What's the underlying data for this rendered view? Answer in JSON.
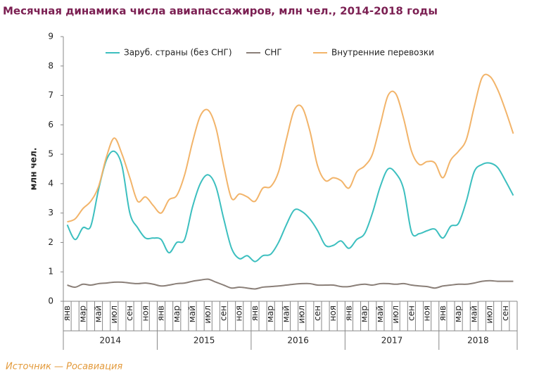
{
  "chart_data": {
    "type": "line",
    "title": "Месячная динамика числа авиапассажиров, млн чел., 2014-2018 годы",
    "y_label": "млн чел.",
    "source": "Источник — Росавиация",
    "years": [
      "2014",
      "2015",
      "2016",
      "2017",
      "2018"
    ],
    "categories": [
      "янв",
      null,
      "мар",
      null,
      "май",
      null,
      "июл",
      null,
      "сен",
      null,
      "ноя",
      null,
      "янв",
      null,
      "мар",
      null,
      "май",
      null,
      "июл",
      null,
      "сен",
      null,
      "ноя",
      null,
      "янв",
      null,
      "мар",
      null,
      "май",
      null,
      "июл",
      null,
      "сен",
      null,
      "ноя",
      null,
      "янв",
      null,
      "мар",
      null,
      "май",
      null,
      "июл",
      null,
      "сен",
      null,
      "ноя",
      null,
      "янв",
      null,
      "мар",
      null,
      "май",
      null,
      "июл",
      null,
      "сен",
      null
    ],
    "series": [
      {
        "name": "Заруб. страны (без СНГ)",
        "color": "#3cbfbf",
        "values": [
          2.6,
          2.1,
          2.5,
          2.55,
          3.8,
          4.8,
          5.1,
          4.6,
          3.0,
          2.5,
          2.15,
          2.15,
          2.1,
          1.65,
          2.0,
          2.1,
          3.2,
          4.0,
          4.3,
          3.9,
          2.8,
          1.8,
          1.45,
          1.55,
          1.35,
          1.55,
          1.6,
          2.0,
          2.6,
          3.1,
          3.05,
          2.8,
          2.4,
          1.9,
          1.9,
          2.05,
          1.8,
          2.1,
          2.3,
          3.0,
          3.9,
          4.5,
          4.35,
          3.8,
          2.35,
          2.3,
          2.4,
          2.45,
          2.15,
          2.55,
          2.65,
          3.4,
          4.4,
          4.65,
          4.7,
          4.55,
          4.1,
          3.6
        ]
      },
      {
        "name": "СНГ",
        "color": "#8a7f78",
        "values": [
          0.55,
          0.48,
          0.58,
          0.55,
          0.6,
          0.62,
          0.65,
          0.65,
          0.62,
          0.6,
          0.62,
          0.58,
          0.52,
          0.55,
          0.6,
          0.62,
          0.68,
          0.72,
          0.75,
          0.65,
          0.55,
          0.45,
          0.48,
          0.45,
          0.42,
          0.48,
          0.5,
          0.52,
          0.55,
          0.58,
          0.6,
          0.6,
          0.55,
          0.55,
          0.55,
          0.5,
          0.5,
          0.55,
          0.58,
          0.55,
          0.6,
          0.6,
          0.58,
          0.6,
          0.55,
          0.52,
          0.5,
          0.45,
          0.52,
          0.55,
          0.58,
          0.58,
          0.62,
          0.68,
          0.7,
          0.68,
          0.68,
          0.68
        ]
      },
      {
        "name": "Внутренние перевозки",
        "color": "#f2b46a",
        "values": [
          2.7,
          2.8,
          3.15,
          3.4,
          3.9,
          4.9,
          5.55,
          5.0,
          4.2,
          3.4,
          3.55,
          3.25,
          3.0,
          3.45,
          3.6,
          4.3,
          5.4,
          6.3,
          6.5,
          5.9,
          4.6,
          3.5,
          3.65,
          3.55,
          3.4,
          3.85,
          3.9,
          4.4,
          5.5,
          6.5,
          6.6,
          5.8,
          4.6,
          4.1,
          4.2,
          4.1,
          3.85,
          4.4,
          4.6,
          5.0,
          6.0,
          7.0,
          7.05,
          6.2,
          5.1,
          4.65,
          4.75,
          4.7,
          4.2,
          4.8,
          5.1,
          5.5,
          6.6,
          7.6,
          7.65,
          7.2,
          6.5,
          5.7
        ]
      }
    ],
    "ylim": [
      0,
      9
    ],
    "yticks": [
      0,
      1,
      2,
      3,
      4,
      5,
      6,
      7,
      8,
      9
    ]
  }
}
